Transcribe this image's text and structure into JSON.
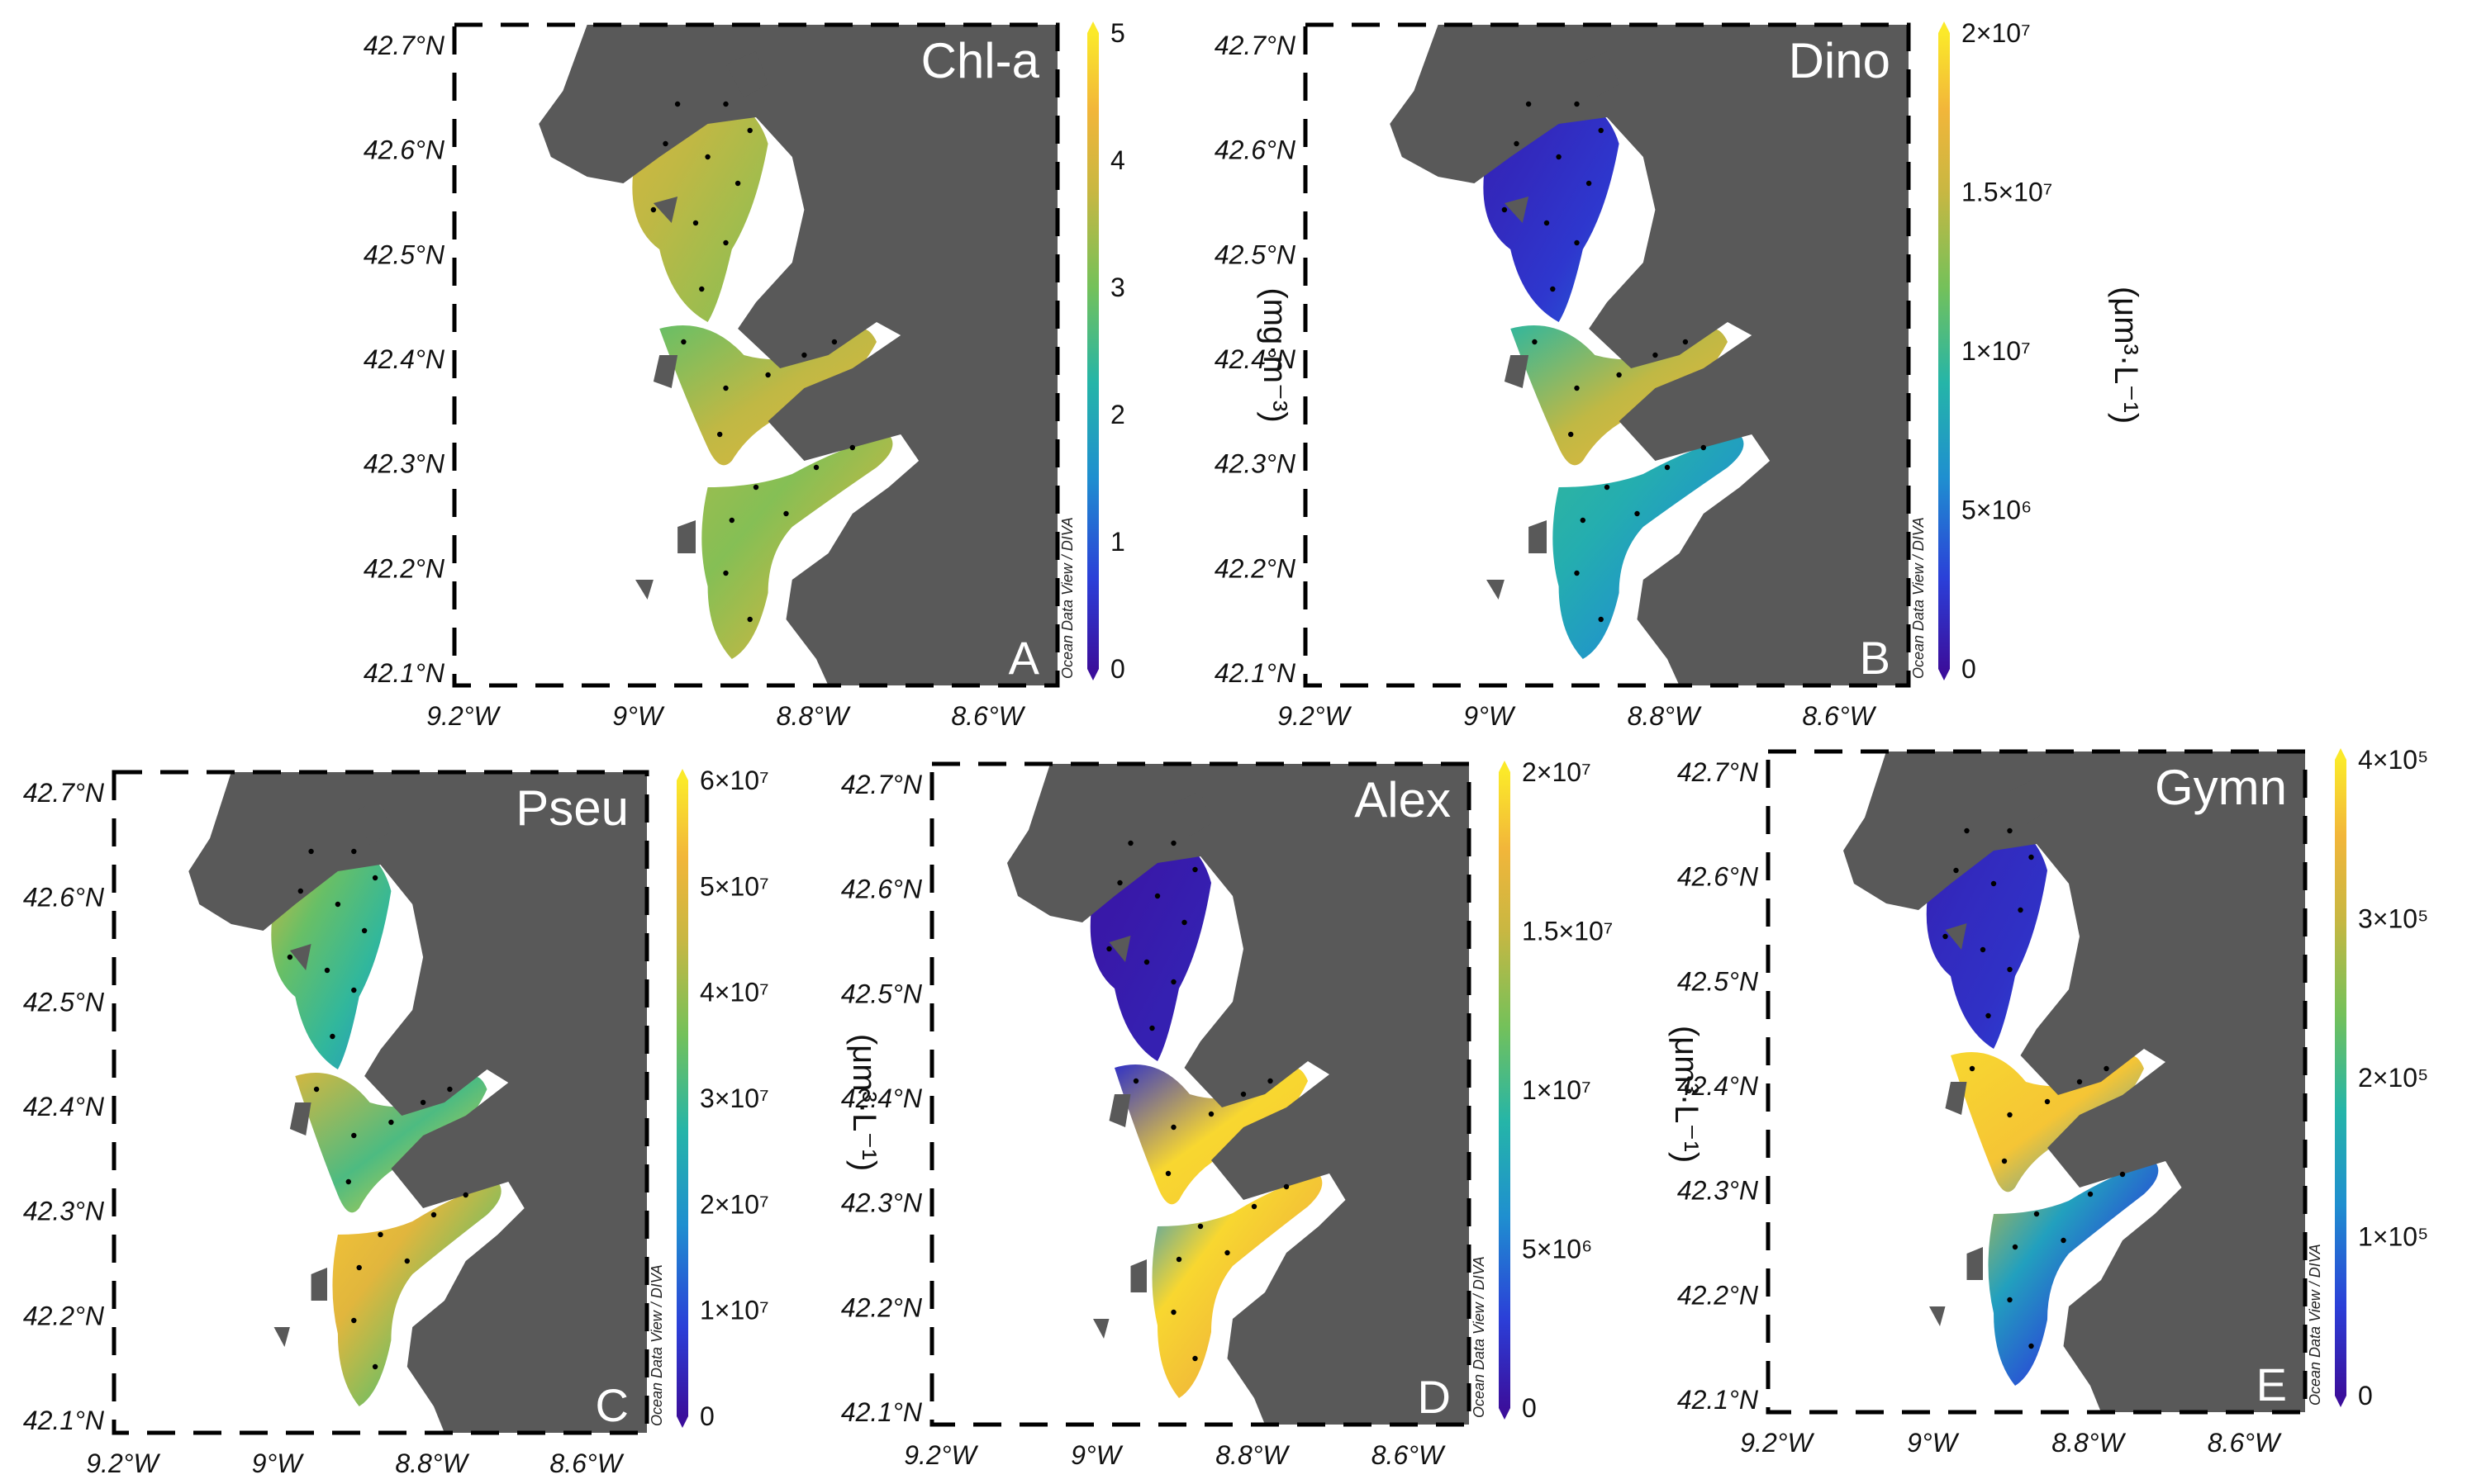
{
  "panels": [
    {
      "id": "A",
      "variable": "Chl-a",
      "panel_letter": "A",
      "unit_label": "(mg·m⁻³)",
      "colorbar_ticks": [
        "0",
        "1",
        "2",
        "3",
        "4",
        "5"
      ],
      "colorbar_range": [
        0,
        5
      ],
      "fields": [
        {
          "name": "north-ria",
          "values": [
            0.75,
            0.7,
            0.65,
            0.6
          ]
        },
        {
          "name": "middle-ria",
          "values": [
            0.55,
            0.7,
            0.8
          ]
        },
        {
          "name": "south-ria",
          "values": [
            0.65,
            0.6,
            0.7,
            0.8
          ]
        }
      ]
    },
    {
      "id": "B",
      "variable": "Dino",
      "panel_letter": "B",
      "unit_label": "(μm³·L⁻¹)",
      "colorbar_ticks": [
        "0",
        "5×10⁶",
        "1×10⁷",
        "1.5×10⁷",
        "2×10⁷"
      ],
      "colorbar_range": [
        0,
        20000000
      ],
      "fields": [
        {
          "name": "north-ria",
          "values": [
            0.05,
            0.08,
            0.12,
            0.2
          ]
        },
        {
          "name": "middle-ria",
          "values": [
            0.45,
            0.7,
            0.85
          ]
        },
        {
          "name": "south-ria",
          "values": [
            0.45,
            0.4,
            0.3,
            0.2
          ]
        }
      ]
    },
    {
      "id": "C",
      "variable": "Pseu",
      "panel_letter": "C",
      "unit_label": "(μm³·L⁻¹)",
      "colorbar_ticks": [
        "0",
        "1×10⁷",
        "2×10⁷",
        "3×10⁷",
        "4×10⁷",
        "5×10⁷",
        "6×10⁷"
      ],
      "colorbar_range": [
        0,
        60000000
      ],
      "fields": [
        {
          "name": "north-ria",
          "values": [
            0.75,
            0.55,
            0.45,
            0.3
          ]
        },
        {
          "name": "middle-ria",
          "values": [
            0.75,
            0.5,
            0.95
          ]
        },
        {
          "name": "south-ria",
          "values": [
            0.9,
            0.8,
            0.55,
            0.4
          ]
        }
      ]
    },
    {
      "id": "D",
      "variable": "Alex",
      "panel_letter": "D",
      "unit_label": "(μm³·L⁻¹)",
      "colorbar_ticks": [
        "0",
        "5×10⁶",
        "1×10⁷",
        "1.5×10⁷",
        "2×10⁷"
      ],
      "colorbar_range": [
        0,
        20000000
      ],
      "fields": [
        {
          "name": "north-ria",
          "values": [
            0.02,
            0.03,
            0.05,
            0.05
          ]
        },
        {
          "name": "middle-ria",
          "values": [
            0.1,
            0.95,
            0.9
          ]
        },
        {
          "name": "south-ria",
          "values": [
            0.3,
            0.95,
            0.85,
            0.75
          ]
        }
      ]
    },
    {
      "id": "E",
      "variable": "Gymn",
      "panel_letter": "E",
      "unit_label": "(μm³·L⁻¹)",
      "colorbar_ticks": [
        "0",
        "1×10⁵",
        "2×10⁵",
        "3×10⁵",
        "4×10⁵"
      ],
      "colorbar_range": [
        0,
        400000
      ],
      "fields": [
        {
          "name": "north-ria",
          "values": [
            0.05,
            0.08,
            0.1,
            0.15
          ]
        },
        {
          "name": "middle-ria",
          "values": [
            0.95,
            0.9,
            0.3
          ]
        },
        {
          "name": "south-ria",
          "values": [
            0.7,
            0.35,
            0.15,
            0.1
          ]
        }
      ]
    }
  ],
  "lat_labels": [
    "42.7°N",
    "42.6°N",
    "42.5°N",
    "42.4°N",
    "42.3°N",
    "42.2°N",
    "42.1°N"
  ],
  "lon_labels": [
    "9.2°W",
    "9°W",
    "8.8°W",
    "8.6°W"
  ],
  "watermark": "Ocean Data View / DIVA",
  "colors": {
    "land": "#595959",
    "ocean": "#ffffff",
    "colormap": [
      "#3b0f9c",
      "#2b3fd8",
      "#1f8fd0",
      "#25b5a8",
      "#74c15a",
      "#c8b742",
      "#f2b63a",
      "#fbe92a"
    ]
  }
}
